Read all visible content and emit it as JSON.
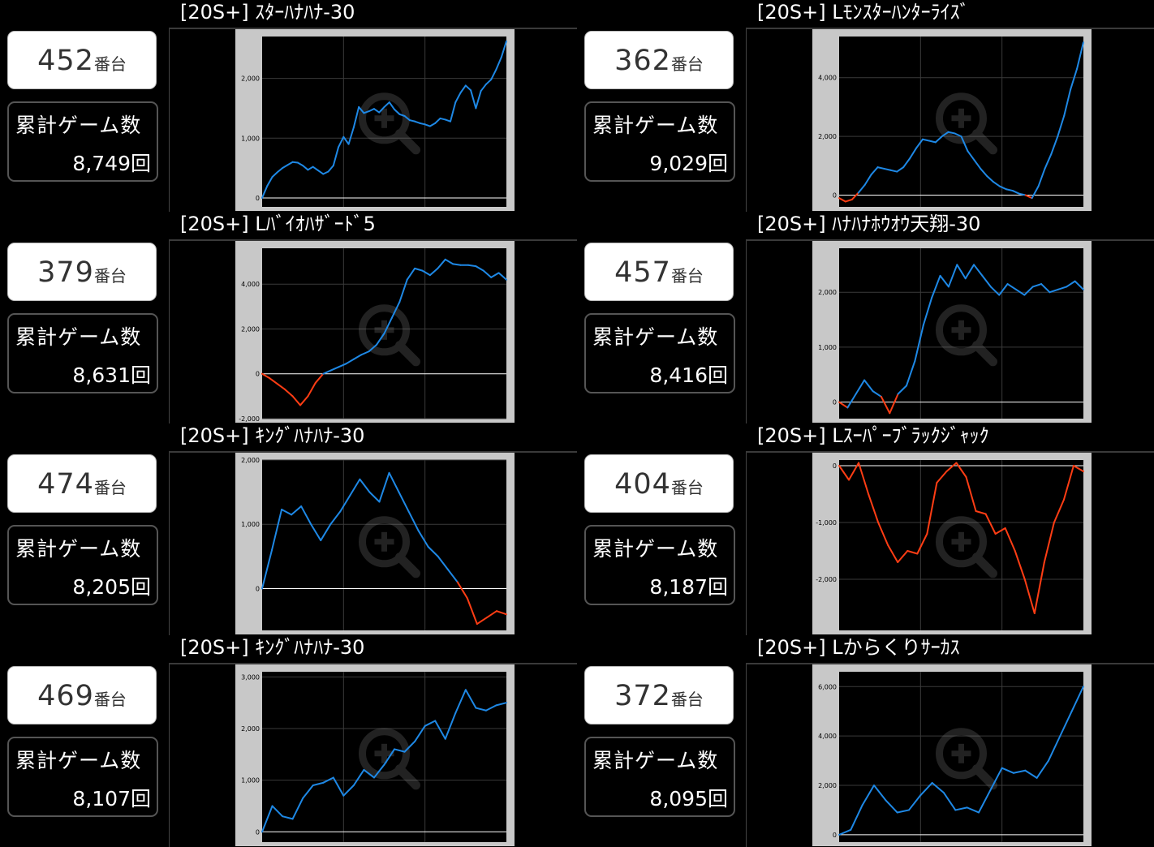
{
  "colors": {
    "positive": "#1e88e5",
    "negative": "#ff3d14",
    "frame": "#c8c8c8",
    "plot_bg": "#000000"
  },
  "icons": {
    "zoom": "zoom-in-icon"
  },
  "labels": {
    "machine_suffix": "番台",
    "games_label": "累計ゲーム数"
  },
  "machines": [
    {
      "number": "452",
      "title": "[20S+] ｽﾀｰﾊﾅﾊﾅ-30",
      "total_games": "8,749回",
      "chart_data": {
        "type": "line",
        "ylim": [
          -150,
          2700
        ],
        "yticks": [
          0,
          1000,
          2000
        ],
        "tick_labels": [
          "0",
          "1,000",
          "2,000"
        ],
        "values": [
          0,
          200,
          350,
          430,
          500,
          550,
          600,
          590,
          540,
          470,
          520,
          460,
          400,
          440,
          540,
          850,
          1020,
          900,
          1180,
          1520,
          1420,
          1450,
          1490,
          1430,
          1520,
          1600,
          1480,
          1400,
          1370,
          1300,
          1280,
          1250,
          1230,
          1200,
          1250,
          1330,
          1310,
          1280,
          1600,
          1760,
          1880,
          1800,
          1500,
          1790,
          1900,
          1980,
          2150,
          2350,
          2620
        ]
      }
    },
    {
      "number": "362",
      "title": "[20S+] Lﾓﾝｽﾀｰﾊﾝﾀｰﾗｲｽﾞ",
      "total_games": "9,029回",
      "chart_data": {
        "type": "line",
        "ylim": [
          -400,
          5400
        ],
        "yticks": [
          0,
          2000,
          4000
        ],
        "tick_labels": [
          "0",
          "2,000",
          "4,000"
        ],
        "values": [
          -100,
          -220,
          -150,
          80,
          350,
          700,
          950,
          900,
          850,
          800,
          950,
          1250,
          1600,
          1900,
          1850,
          1800,
          2000,
          2150,
          2100,
          2000,
          1500,
          1200,
          900,
          650,
          450,
          300,
          200,
          150,
          50,
          0,
          -100,
          300,
          900,
          1400,
          2000,
          2700,
          3600,
          4300,
          5200
        ]
      }
    },
    {
      "number": "379",
      "title": "[20S+] Lﾊﾞｲｵﾊｻﾞｰﾄﾞ5",
      "total_games": "8,631回",
      "chart_data": {
        "type": "line",
        "ylim": [
          -2000,
          5600
        ],
        "yticks": [
          -2000,
          0,
          2000,
          4000
        ],
        "tick_labels": [
          "-2,000",
          "0",
          "2,000",
          "4,000"
        ],
        "values": [
          0,
          -200,
          -450,
          -700,
          -1000,
          -1400,
          -1000,
          -400,
          0,
          150,
          300,
          450,
          650,
          850,
          1000,
          1300,
          1800,
          2500,
          3200,
          4200,
          4700,
          4600,
          4400,
          4700,
          5100,
          4900,
          4850,
          4850,
          4800,
          4600,
          4300,
          4500,
          4200
        ]
      }
    },
    {
      "number": "457",
      "title": "[20S+] ﾊﾅﾊﾅﾎｳｵｳ天翔-30",
      "total_games": "8,416回",
      "chart_data": {
        "type": "line",
        "ylim": [
          -300,
          2800
        ],
        "yticks": [
          0,
          1000,
          2000
        ],
        "tick_labels": [
          "0",
          "1,000",
          "2,000"
        ],
        "values": [
          0,
          -100,
          150,
          400,
          200,
          100,
          -200,
          150,
          300,
          750,
          1400,
          1900,
          2300,
          2100,
          2500,
          2250,
          2500,
          2300,
          2100,
          1950,
          2150,
          2050,
          1950,
          2100,
          2150,
          2000,
          2050,
          2100,
          2200,
          2050
        ]
      }
    },
    {
      "number": "474",
      "title": "[20S+] ｷﾝｸﾞﾊﾅﾊﾅ-30",
      "total_games": "8,205回",
      "chart_data": {
        "type": "line",
        "ylim": [
          -650,
          2000
        ],
        "yticks": [
          0,
          1000,
          2000
        ],
        "tick_labels": [
          "0",
          "1,000",
          "2,000"
        ],
        "values": [
          0,
          600,
          1230,
          1150,
          1280,
          1000,
          750,
          1000,
          1200,
          1450,
          1700,
          1500,
          1350,
          1800,
          1500,
          1200,
          900,
          650,
          500,
          300,
          100,
          -150,
          -550,
          -450,
          -350,
          -400
        ]
      }
    },
    {
      "number": "404",
      "title": "[20S+] Lｽｰﾊﾟｰﾌﾞﾗｯｸｼﾞｬｯｸ",
      "total_games": "8,187回",
      "chart_data": {
        "type": "line",
        "ylim": [
          -2900,
          100
        ],
        "yticks": [
          -2000,
          -1000,
          0
        ],
        "tick_labels": [
          "-2,000",
          "-1,000",
          "0"
        ],
        "values": [
          0,
          -250,
          50,
          -500,
          -1000,
          -1400,
          -1700,
          -1500,
          -1550,
          -1200,
          -300,
          -100,
          50,
          -200,
          -800,
          -850,
          -1200,
          -1100,
          -1500,
          -2000,
          -2600,
          -1700,
          -1000,
          -600,
          0,
          -100
        ]
      }
    },
    {
      "number": "469",
      "title": "[20S+] ｷﾝｸﾞﾊﾅﾊﾅ-30",
      "total_games": "8,107回",
      "chart_data": {
        "type": "line",
        "ylim": [
          -200,
          3100
        ],
        "yticks": [
          0,
          1000,
          2000,
          3000
        ],
        "tick_labels": [
          "0",
          "1,000",
          "2,000",
          "3,000"
        ],
        "values": [
          0,
          500,
          300,
          250,
          650,
          900,
          950,
          1050,
          700,
          900,
          1200,
          1050,
          1300,
          1600,
          1550,
          1750,
          2050,
          2150,
          1800,
          2300,
          2750,
          2400,
          2350,
          2450,
          2500
        ]
      }
    },
    {
      "number": "372",
      "title": "[20S+] Lからくりｻｰｶｽ",
      "total_games": "8,095回",
      "chart_data": {
        "type": "line",
        "ylim": [
          -300,
          6600
        ],
        "yticks": [
          0,
          2000,
          4000,
          6000
        ],
        "tick_labels": [
          "0",
          "2,000",
          "4,000",
          "6,000"
        ],
        "values": [
          0,
          200,
          1200,
          2000,
          1400,
          900,
          1000,
          1600,
          2100,
          1700,
          1000,
          1100,
          900,
          1800,
          2700,
          2500,
          2600,
          2300,
          3000,
          4000,
          5000,
          6000
        ]
      }
    }
  ]
}
